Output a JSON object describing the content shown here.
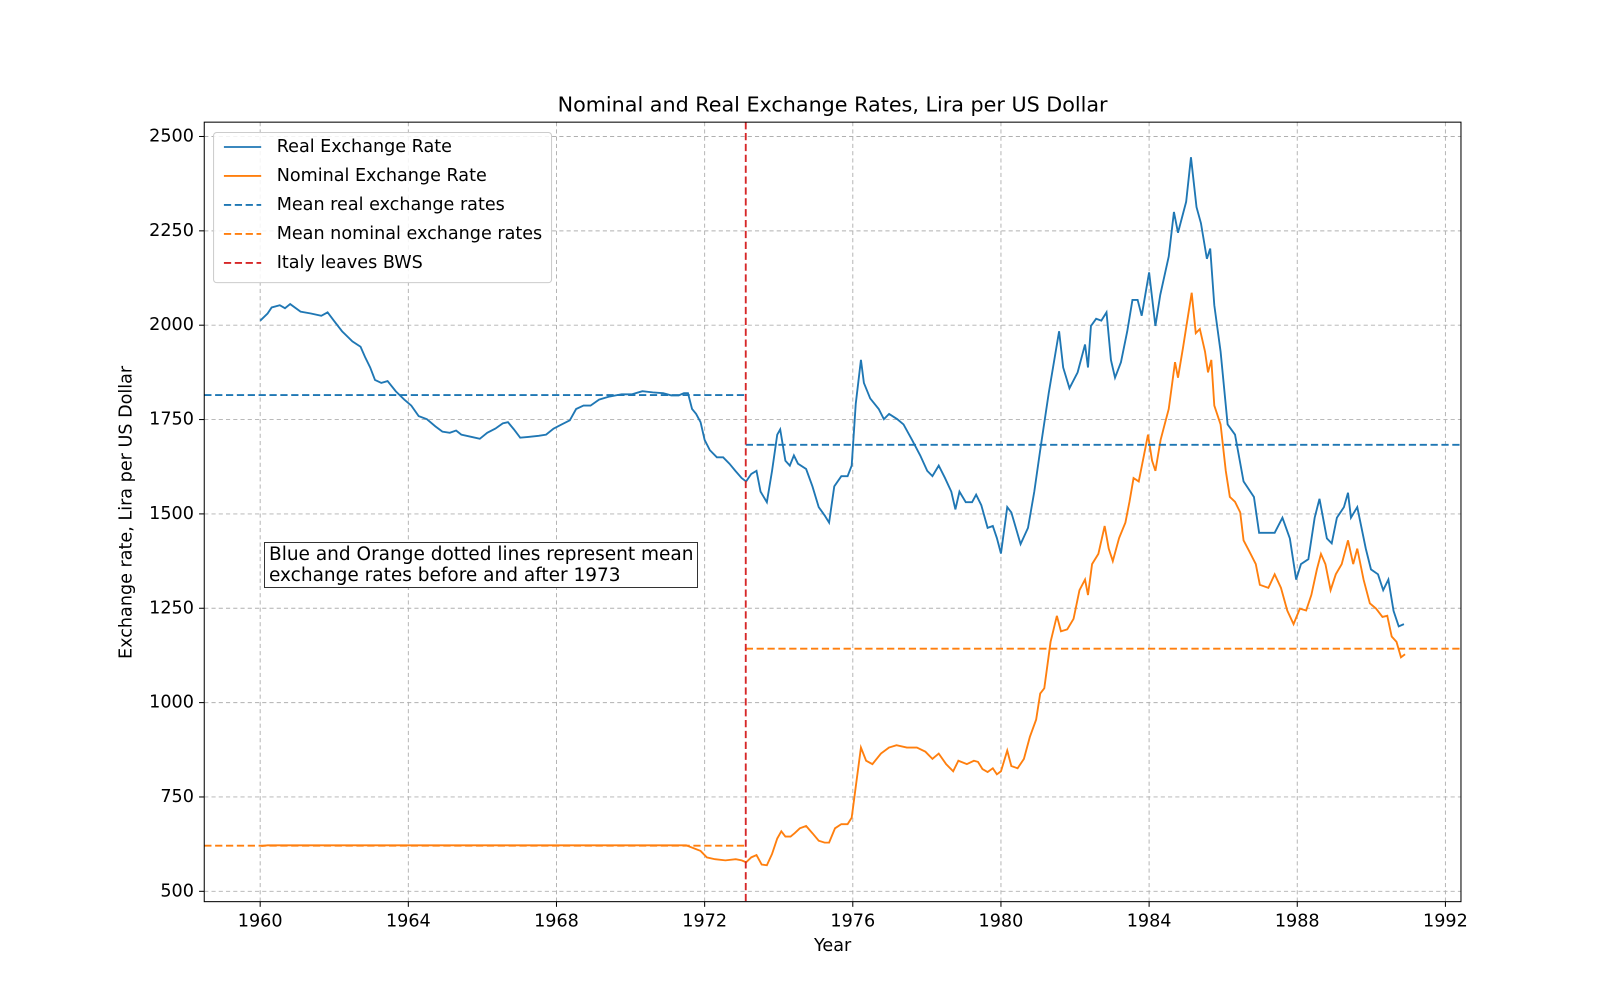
{
  "chart_data": {
    "type": "line",
    "title": "Nominal and Real Exchange Rates, Lira per US Dollar",
    "xlabel": "Year",
    "ylabel": "Exchange rate, Lira per US Dollar",
    "annotation": "Blue and Orange dotted lines represent mean\nexchange rates before and after 1973",
    "xlim": [
      1958.49,
      1992.42
    ],
    "ylim": [
      472.6,
      2538
    ],
    "xticks": [
      1960,
      1964,
      1968,
      1972,
      1976,
      1980,
      1984,
      1988,
      1992
    ],
    "yticks": [
      500,
      750,
      1000,
      1250,
      1500,
      1750,
      2000,
      2250,
      2500
    ],
    "grid": true,
    "legend": "upper-left",
    "series": [
      {
        "name": "Real Exchange Rate",
        "color": "#1f77b4",
        "dashed": false,
        "x": [
          1960.0,
          1960.2,
          1960.31,
          1960.53,
          1960.67,
          1960.81,
          1961.09,
          1961.37,
          1961.65,
          1961.82,
          1961.99,
          1962.21,
          1962.49,
          1962.71,
          1962.83,
          1962.97,
          1963.1,
          1963.27,
          1963.44,
          1963.66,
          1963.89,
          1964.08,
          1964.28,
          1964.5,
          1964.73,
          1964.92,
          1965.12,
          1965.29,
          1965.43,
          1965.71,
          1965.93,
          1966.13,
          1966.35,
          1966.55,
          1966.69,
          1966.85,
          1967.02,
          1967.24,
          1967.52,
          1967.72,
          1967.92,
          1968.14,
          1968.36,
          1968.53,
          1968.73,
          1968.92,
          1969.15,
          1969.43,
          1969.76,
          1970.04,
          1970.32,
          1970.6,
          1970.88,
          1971.1,
          1971.3,
          1971.44,
          1971.55,
          1971.66,
          1971.77,
          1971.89,
          1972.0,
          1972.14,
          1972.33,
          1972.5,
          1972.67,
          1972.83,
          1973.0,
          1973.12,
          1973.26,
          1973.4,
          1973.51,
          1973.68,
          1973.82,
          1973.96,
          1974.04,
          1974.18,
          1974.3,
          1974.41,
          1974.52,
          1974.74,
          1974.91,
          1975.08,
          1975.24,
          1975.36,
          1975.5,
          1975.69,
          1975.86,
          1975.97,
          1976.08,
          1976.22,
          1976.3,
          1976.47,
          1976.7,
          1976.84,
          1976.98,
          1977.2,
          1977.37,
          1977.6,
          1977.82,
          1978.01,
          1978.15,
          1978.32,
          1978.49,
          1978.66,
          1978.77,
          1978.88,
          1979.05,
          1979.22,
          1979.33,
          1979.47,
          1979.64,
          1979.78,
          1979.89,
          1980.0,
          1980.17,
          1980.28,
          1980.53,
          1980.73,
          1980.9,
          1981.06,
          1981.29,
          1981.57,
          1981.68,
          1981.85,
          1982.07,
          1982.27,
          1982.35,
          1982.43,
          1982.57,
          1982.71,
          1982.85,
          1982.97,
          1983.08,
          1983.24,
          1983.41,
          1983.55,
          1983.69,
          1983.8,
          1984.0,
          1984.17,
          1984.3,
          1984.53,
          1984.67,
          1984.78,
          1985.0,
          1985.13,
          1985.28,
          1985.4,
          1985.56,
          1985.65,
          1985.76,
          1985.93,
          1986.12,
          1986.32,
          1986.55,
          1986.83,
          1986.97,
          1987.39,
          1987.6,
          1987.8,
          1987.97,
          1988.1,
          1988.3,
          1988.47,
          1988.6,
          1988.8,
          1988.93,
          1989.07,
          1989.26,
          1989.37,
          1989.45,
          1989.62,
          1989.85,
          1989.99,
          1990.18,
          1990.32,
          1990.46,
          1990.6,
          1990.74,
          1990.88
        ],
        "values": [
          2012,
          2031,
          2047,
          2053,
          2045,
          2056,
          2036,
          2031,
          2025,
          2034,
          2012,
          1984,
          1957,
          1943,
          1916,
          1888,
          1855,
          1847,
          1852,
          1825,
          1803,
          1787,
          1759,
          1751,
          1732,
          1718,
          1715,
          1721,
          1710,
          1704,
          1699,
          1715,
          1726,
          1740,
          1743,
          1724,
          1702,
          1704,
          1707,
          1710,
          1726,
          1737,
          1748,
          1778,
          1787,
          1787,
          1803,
          1811,
          1817,
          1817,
          1825,
          1822,
          1820,
          1814,
          1814,
          1820,
          1820,
          1778,
          1765,
          1743,
          1696,
          1669,
          1650,
          1650,
          1633,
          1614,
          1595,
          1586,
          1606,
          1614,
          1559,
          1531,
          1614,
          1710,
          1724,
          1641,
          1628,
          1655,
          1633,
          1619,
          1573,
          1518,
          1496,
          1477,
          1573,
          1600,
          1600,
          1628,
          1792,
          1908,
          1847,
          1806,
          1778,
          1751,
          1765,
          1751,
          1737,
          1696,
          1655,
          1614,
          1600,
          1628,
          1595,
          1559,
          1512,
          1559,
          1531,
          1531,
          1551,
          1523,
          1463,
          1468,
          1436,
          1395,
          1518,
          1504,
          1420,
          1463,
          1559,
          1669,
          1820,
          1984,
          1888,
          1833,
          1875,
          1949,
          1888,
          1998,
          2017,
          2012,
          2034,
          1908,
          1861,
          1902,
          1984,
          2067,
          2067,
          2025,
          2140,
          1998,
          2080,
          2182,
          2300,
          2245,
          2327,
          2445,
          2313,
          2270,
          2176,
          2203,
          2053,
          1930,
          1737,
          1710,
          1586,
          1545,
          1450,
          1450,
          1490,
          1435,
          1326,
          1367,
          1380,
          1490,
          1540,
          1435,
          1422,
          1490,
          1518,
          1556,
          1490,
          1518,
          1408,
          1353,
          1340,
          1298,
          1326,
          1243,
          1202,
          1208
        ]
      },
      {
        "name": "Nominal Exchange Rate",
        "color": "#ff7f0e",
        "dashed": false,
        "x": [
          1960.03,
          1960.2,
          1965.0,
          1970.0,
          1971.5,
          1971.89,
          1972.06,
          1972.28,
          1972.56,
          1972.84,
          1973.0,
          1973.12,
          1973.26,
          1973.4,
          1973.54,
          1973.68,
          1973.82,
          1973.96,
          1974.07,
          1974.18,
          1974.32,
          1974.43,
          1974.57,
          1974.74,
          1974.91,
          1975.08,
          1975.24,
          1975.36,
          1975.52,
          1975.69,
          1975.86,
          1975.97,
          1976.08,
          1976.22,
          1976.36,
          1976.53,
          1976.76,
          1976.98,
          1977.18,
          1977.46,
          1977.73,
          1977.96,
          1978.15,
          1978.32,
          1978.52,
          1978.71,
          1978.85,
          1979.08,
          1979.27,
          1979.38,
          1979.5,
          1979.64,
          1979.78,
          1979.89,
          1980.0,
          1980.17,
          1980.28,
          1980.45,
          1980.62,
          1980.78,
          1980.95,
          1981.06,
          1981.17,
          1981.34,
          1981.51,
          1981.62,
          1981.79,
          1981.96,
          1982.12,
          1982.27,
          1982.35,
          1982.46,
          1982.63,
          1982.8,
          1982.91,
          1983.02,
          1983.19,
          1983.36,
          1983.47,
          1983.58,
          1983.72,
          1983.86,
          1983.97,
          1984.08,
          1984.17,
          1984.31,
          1984.53,
          1984.7,
          1984.78,
          1984.92,
          1985.03,
          1985.15,
          1985.26,
          1985.37,
          1985.51,
          1985.59,
          1985.68,
          1985.76,
          1985.93,
          1986.07,
          1986.18,
          1986.32,
          1986.46,
          1986.55,
          1986.71,
          1986.88,
          1986.99,
          1987.22,
          1987.39,
          1987.56,
          1987.73,
          1987.9,
          1988.07,
          1988.24,
          1988.38,
          1988.53,
          1988.64,
          1988.76,
          1988.9,
          1989.04,
          1989.2,
          1989.37,
          1989.51,
          1989.62,
          1989.79,
          1989.96,
          1990.13,
          1990.3,
          1990.43,
          1990.55,
          1990.68,
          1990.8,
          1990.91
        ],
        "values": [
          620,
          622,
          622,
          622,
          622,
          607,
          590,
          585,
          582,
          585,
          582,
          577,
          590,
          596,
          571,
          569,
          599,
          640,
          659,
          645,
          645,
          654,
          667,
          673,
          654,
          634,
          629,
          629,
          667,
          678,
          678,
          695,
          777,
          881,
          846,
          837,
          865,
          881,
          887,
          881,
          881,
          870,
          851,
          865,
          837,
          818,
          846,
          837,
          846,
          843,
          824,
          816,
          826,
          810,
          818,
          873,
          832,
          826,
          851,
          909,
          955,
          1024,
          1038,
          1161,
          1230,
          1189,
          1194,
          1222,
          1298,
          1326,
          1285,
          1367,
          1394,
          1468,
          1408,
          1375,
          1436,
          1477,
          1532,
          1595,
          1586,
          1655,
          1710,
          1641,
          1614,
          1696,
          1778,
          1902,
          1861,
          1943,
          2012,
          2086,
          1979,
          1990,
          1930,
          1875,
          1908,
          1787,
          1737,
          1614,
          1545,
          1532,
          1504,
          1430,
          1400,
          1367,
          1312,
          1304,
          1340,
          1304,
          1244,
          1208,
          1249,
          1244,
          1285,
          1353,
          1394,
          1367,
          1298,
          1340,
          1367,
          1430,
          1367,
          1408,
          1326,
          1263,
          1249,
          1227,
          1230,
          1175,
          1161,
          1120,
          1128
        ]
      },
      {
        "name": "Mean real exchange rates",
        "color": "#1f77b4",
        "dashed": true,
        "x": [
          1958.49,
          1973.11,
          1973.11,
          1973.11,
          1992.42
        ],
        "values": [
          1815,
          1815,
          null,
          1683,
          1683
        ]
      },
      {
        "name": "Mean nominal exchange rates",
        "color": "#ff7f0e",
        "dashed": true,
        "x": [
          1958.49,
          1973.11,
          1973.11,
          1973.11,
          1992.42
        ],
        "values": [
          621,
          621,
          null,
          1143,
          1143
        ]
      }
    ],
    "vlines": [
      {
        "name": "Italy leaves BWS",
        "color": "#d62728",
        "x": 1973.11
      }
    ]
  }
}
